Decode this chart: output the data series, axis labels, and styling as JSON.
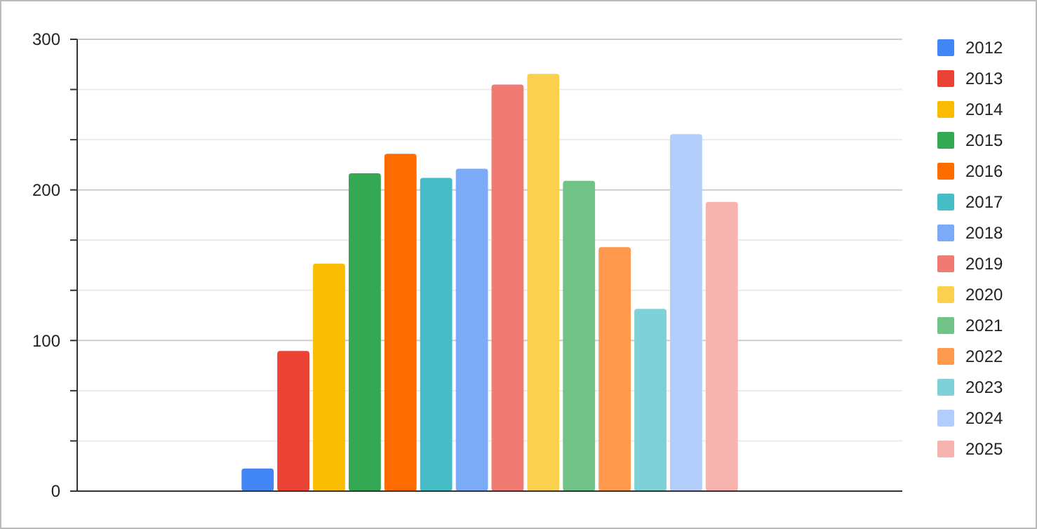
{
  "chart_data": {
    "type": "bar",
    "categories": [
      null
    ],
    "series": [
      {
        "name": "2012",
        "color": "#4285f4",
        "values": [
          15
        ]
      },
      {
        "name": "2013",
        "color": "#ea4335",
        "values": [
          93
        ]
      },
      {
        "name": "2014",
        "color": "#fbbc04",
        "values": [
          151
        ]
      },
      {
        "name": "2015",
        "color": "#34a853",
        "values": [
          211
        ]
      },
      {
        "name": "2016",
        "color": "#ff6d01",
        "values": [
          224
        ]
      },
      {
        "name": "2017",
        "color": "#46bdc6",
        "values": [
          208
        ]
      },
      {
        "name": "2018",
        "color": "#7baaf7",
        "values": [
          214
        ]
      },
      {
        "name": "2019",
        "color": "#f07b72",
        "values": [
          270
        ]
      },
      {
        "name": "2020",
        "color": "#fcd04f",
        "values": [
          277
        ]
      },
      {
        "name": "2021",
        "color": "#71c287",
        "values": [
          206
        ]
      },
      {
        "name": "2022",
        "color": "#ff994d",
        "values": [
          162
        ]
      },
      {
        "name": "2023",
        "color": "#7ed1d7",
        "values": [
          121
        ]
      },
      {
        "name": "2024",
        "color": "#b3cefb",
        "values": [
          237
        ]
      },
      {
        "name": "2025",
        "color": "#f7b4ae",
        "values": [
          192
        ]
      }
    ],
    "ylim": [
      0,
      300
    ],
    "yticks": [
      0,
      {
        "value": 33.33,
        "label": null
      },
      {
        "value": 66.67,
        "label": null
      },
      100,
      {
        "value": 133.33,
        "label": null
      },
      {
        "value": 166.67,
        "label": null
      },
      200,
      {
        "value": 233.33,
        "label": null
      },
      {
        "value": 266.67,
        "label": null
      },
      300
    ],
    "grid": true,
    "legend": "right"
  }
}
